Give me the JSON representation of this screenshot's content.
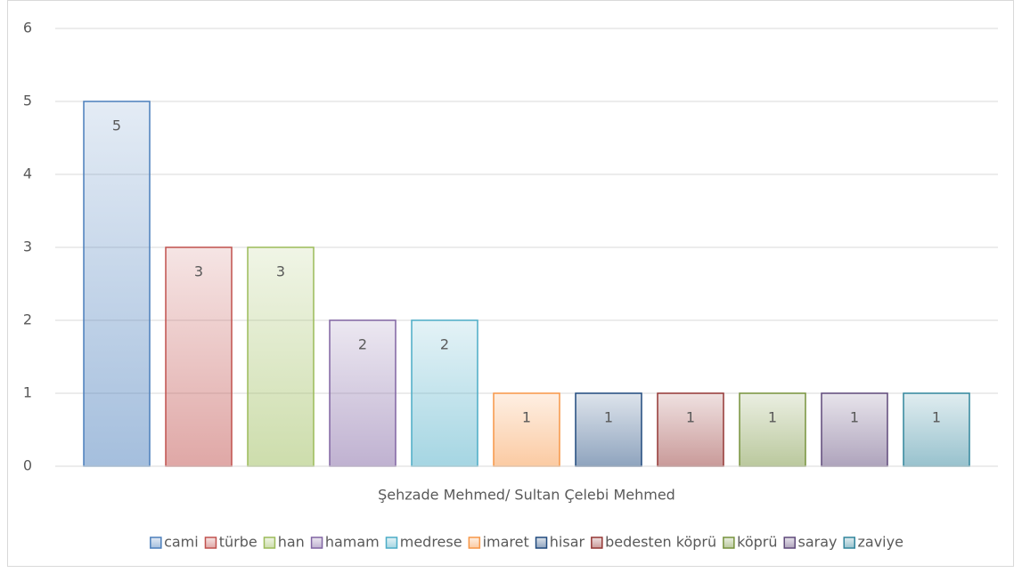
{
  "chart_data": {
    "type": "bar",
    "categories": [
      "Şehzade Mehmed/ Sultan Çelebi Mehmed"
    ],
    "series": [
      {
        "name": "cami",
        "color": "#4a7ebb",
        "values": [
          5
        ]
      },
      {
        "name": "türbe",
        "color": "#c0504d",
        "values": [
          3
        ]
      },
      {
        "name": "han",
        "color": "#9bbb59",
        "values": [
          3
        ]
      },
      {
        "name": "hamam",
        "color": "#8064a2",
        "values": [
          2
        ]
      },
      {
        "name": "medrese",
        "color": "#4bacc6",
        "values": [
          2
        ]
      },
      {
        "name": "imaret",
        "color": "#f79646",
        "values": [
          1
        ]
      },
      {
        "name": "hisar",
        "color": "#1f497d",
        "values": [
          1
        ]
      },
      {
        "name": "bedesten köprü",
        "color": "#943634",
        "values": [
          1
        ]
      },
      {
        "name": "köprü",
        "color": "#76923c",
        "values": [
          1
        ]
      },
      {
        "name": "saray",
        "color": "#5f497a",
        "values": [
          1
        ]
      },
      {
        "name": "zaviye",
        "color": "#31859c",
        "values": [
          1
        ]
      }
    ],
    "ylim": [
      0,
      6
    ],
    "yticks": [
      0,
      1,
      2,
      3,
      4,
      5,
      6
    ],
    "grid": true,
    "legend": "bottom"
  }
}
